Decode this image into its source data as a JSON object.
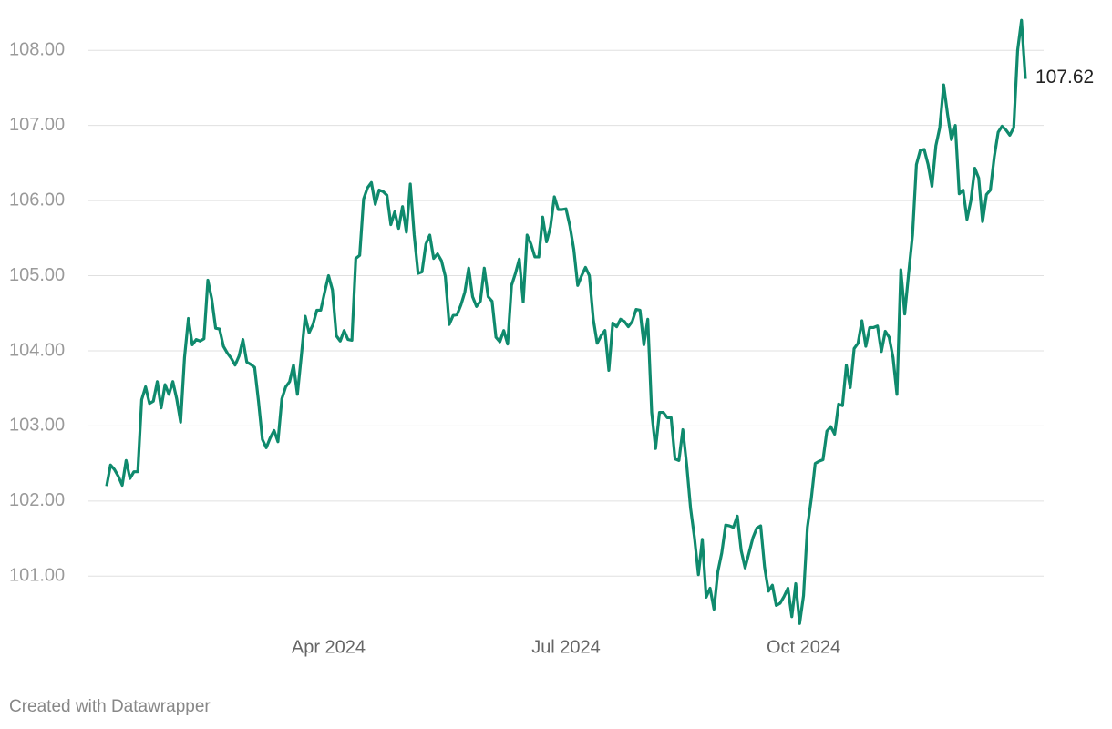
{
  "chart_data": {
    "type": "line",
    "categories": [
      null,
      null,
      null,
      null,
      null,
      null,
      null,
      null,
      null,
      null,
      null,
      null,
      null,
      null,
      null,
      null,
      null,
      null,
      null,
      null,
      null,
      null,
      null,
      null,
      null,
      null,
      null,
      null,
      null,
      null,
      null,
      null,
      null,
      null,
      null,
      null,
      null,
      null,
      null,
      null,
      null,
      null,
      null,
      null,
      null,
      null,
      null,
      null,
      null,
      null,
      null,
      null,
      null,
      null,
      null,
      null,
      null,
      "Apr 2024",
      null,
      null,
      null,
      null,
      null,
      null,
      null,
      null,
      null,
      null,
      null,
      null,
      null,
      null,
      null,
      null,
      null,
      null,
      null,
      null,
      null,
      null,
      null,
      null,
      null,
      null,
      null,
      null,
      null,
      null,
      null,
      null,
      null,
      null,
      null,
      null,
      null,
      null,
      null,
      null,
      null,
      null,
      null,
      null,
      null,
      null,
      null,
      null,
      null,
      null,
      null,
      null,
      null,
      null,
      null,
      null,
      null,
      null,
      null,
      null,
      "Jul 2024",
      null,
      null,
      null,
      null,
      null,
      null,
      null,
      null,
      null,
      null,
      null,
      null,
      null,
      null,
      null,
      null,
      null,
      null,
      null,
      null,
      null,
      null,
      null,
      null,
      null,
      null,
      null,
      null,
      null,
      null,
      null,
      null,
      null,
      null,
      null,
      null,
      null,
      null,
      null,
      null,
      null,
      null,
      null,
      null,
      null,
      null,
      null,
      null,
      null,
      null,
      null,
      null,
      null,
      null,
      null,
      null,
      null,
      null,
      null,
      null,
      "Oct 2024",
      null,
      null,
      null,
      null,
      null,
      null,
      null,
      null,
      null,
      null,
      null,
      null,
      null,
      null,
      null,
      null,
      null,
      null,
      null,
      null,
      null,
      null,
      null,
      null,
      null,
      null,
      null,
      null,
      null,
      null,
      null,
      null,
      null,
      null,
      null,
      null,
      null,
      null,
      null,
      null,
      null,
      null,
      null,
      null,
      null,
      null,
      null,
      null,
      null,
      null,
      null,
      null,
      null,
      null,
      null,
      null,
      null
    ],
    "values": [
      102.2,
      102.48,
      102.42,
      102.33,
      102.21,
      102.54,
      102.3,
      102.39,
      102.39,
      103.35,
      103.52,
      103.3,
      103.33,
      103.59,
      103.24,
      103.55,
      103.42,
      103.59,
      103.36,
      103.05,
      103.91,
      104.43,
      104.08,
      104.15,
      104.13,
      104.16,
      104.94,
      104.69,
      104.3,
      104.29,
      104.06,
      103.97,
      103.9,
      103.81,
      103.93,
      104.15,
      103.85,
      103.82,
      103.78,
      103.33,
      102.82,
      102.71,
      102.84,
      102.94,
      102.79,
      103.36,
      103.52,
      103.59,
      103.81,
      103.42,
      103.93,
      104.46,
      104.24,
      104.35,
      104.54,
      104.54,
      104.78,
      105.0,
      104.81,
      104.2,
      104.13,
      104.27,
      104.15,
      104.14,
      105.23,
      105.27,
      106.02,
      106.17,
      106.24,
      105.95,
      106.14,
      106.12,
      106.07,
      105.68,
      105.85,
      105.63,
      105.92,
      105.58,
      106.22,
      105.54,
      105.03,
      105.05,
      105.42,
      105.54,
      105.23,
      105.29,
      105.2,
      104.99,
      104.35,
      104.47,
      104.48,
      104.61,
      104.78,
      105.1,
      104.72,
      104.59,
      104.66,
      105.1,
      104.72,
      104.66,
      104.18,
      104.12,
      104.27,
      104.09,
      104.87,
      105.03,
      105.22,
      104.65,
      105.54,
      105.42,
      105.25,
      105.25,
      105.78,
      105.45,
      105.65,
      106.05,
      105.88,
      105.88,
      105.89,
      105.66,
      105.35,
      104.87,
      105.0,
      105.11,
      105.0,
      104.42,
      104.1,
      104.2,
      104.27,
      103.74,
      104.37,
      104.32,
      104.42,
      104.39,
      104.32,
      104.39,
      104.55,
      104.54,
      104.08,
      104.42,
      103.18,
      102.7,
      103.18,
      103.18,
      103.11,
      103.11,
      102.56,
      102.54,
      102.95,
      102.48,
      101.9,
      101.51,
      101.02,
      101.49,
      100.72,
      100.84,
      100.56,
      101.06,
      101.31,
      101.68,
      101.67,
      101.65,
      101.8,
      101.34,
      101.11,
      101.31,
      101.51,
      101.64,
      101.67,
      101.12,
      100.8,
      100.88,
      100.61,
      100.64,
      100.73,
      100.84,
      100.46,
      100.9,
      100.37,
      100.74,
      101.65,
      102.03,
      102.5,
      102.53,
      102.55,
      102.93,
      102.99,
      102.89,
      103.29,
      103.27,
      103.81,
      103.51,
      104.03,
      104.1,
      104.4,
      104.06,
      104.31,
      104.31,
      104.33,
      103.99,
      104.26,
      104.18,
      103.91,
      103.42,
      105.08,
      104.49,
      105.03,
      105.54,
      106.48,
      106.67,
      106.68,
      106.48,
      106.19,
      106.73,
      106.97,
      107.54,
      107.15,
      106.81,
      107.0,
      106.09,
      106.14,
      105.75,
      106.0,
      106.43,
      106.3,
      105.72,
      106.08,
      106.14,
      106.58,
      106.91,
      106.99,
      106.94,
      106.87,
      106.97,
      108.0,
      108.4,
      107.62
    ],
    "color": "#0f8a6d",
    "ylim": [
      100.3,
      108.5
    ],
    "yticks": [
      {
        "value": 101,
        "label": "101.00"
      },
      {
        "value": 102,
        "label": "102.00"
      },
      {
        "value": 103,
        "label": "103.00"
      },
      {
        "value": 104,
        "label": "104.00"
      },
      {
        "value": 105,
        "label": "105.00"
      },
      {
        "value": 106,
        "label": "106.00"
      },
      {
        "value": 107,
        "label": "107.00"
      },
      {
        "value": 108,
        "label": "108.00"
      }
    ],
    "grid": true,
    "source": "Created with Datawrapper"
  }
}
